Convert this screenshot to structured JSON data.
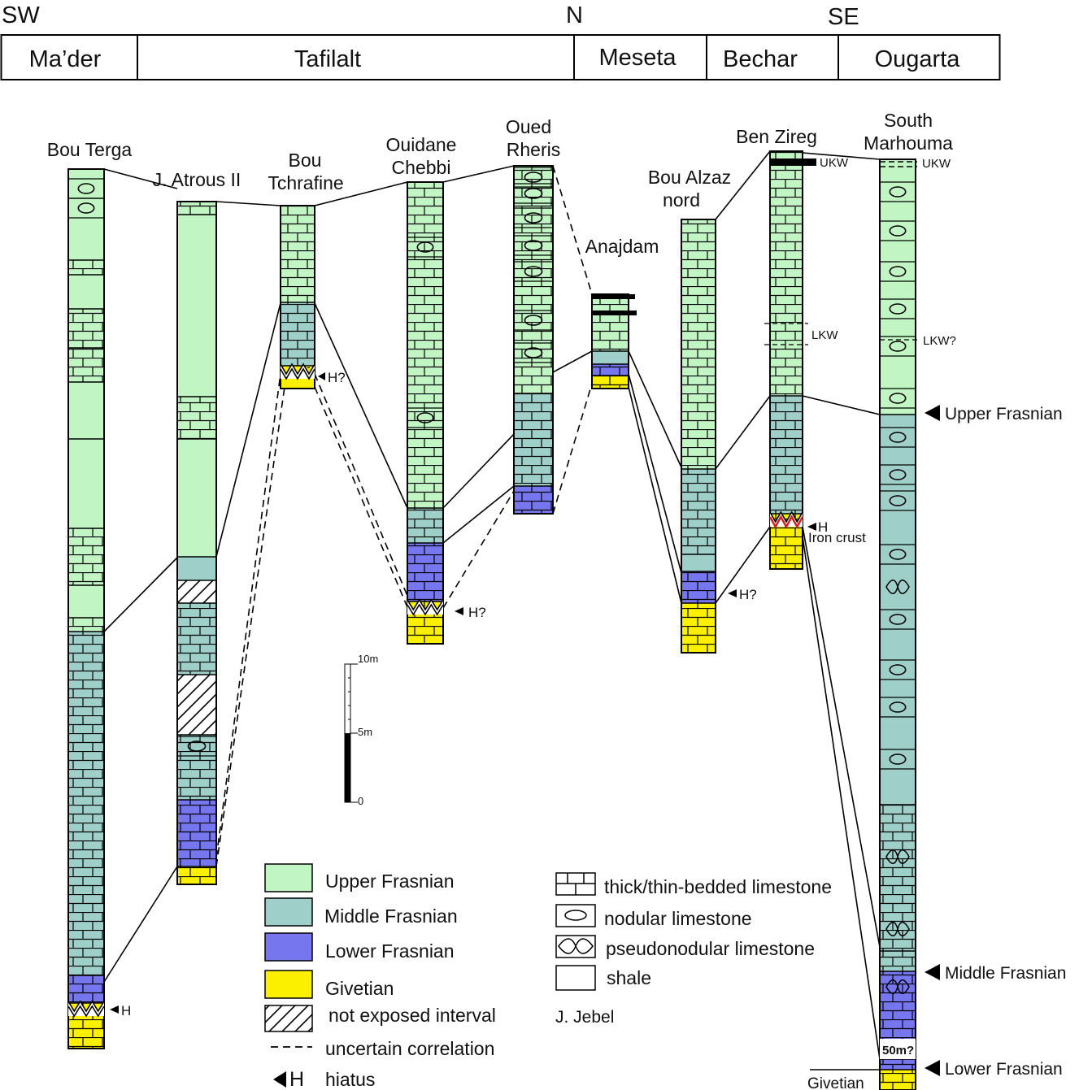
{
  "directions": {
    "sw": "SW",
    "n": "N",
    "se": "SE"
  },
  "regions": [
    "Ma’der",
    "Tafilalt",
    "Meseta",
    "Bechar",
    "Ougarta"
  ],
  "sections": {
    "bou_terga": "Bou Terga",
    "j_atrous": "J. Atrous II",
    "bou_tchrafine": [
      "Bou",
      "Tchrafine"
    ],
    "ouidane_chebbi": [
      "Ouidane",
      "Chebbi"
    ],
    "oued_rheris": [
      "Oued",
      "Rheris"
    ],
    "anajdam": "Anajdam",
    "bou_alzaz": [
      "Bou Alzaz",
      "nord"
    ],
    "ben_zireg": "Ben Zireg",
    "south_marhouma": [
      "South",
      "Marhouma"
    ]
  },
  "annotations": {
    "ukw": "UKW",
    "lkw": "LKW",
    "lkw_q": "LKW?",
    "h": "H",
    "h_q": "H?",
    "iron_crust": "Iron crust",
    "upper_frasnian": "Upper Frasnian",
    "middle_frasnian": "Middle Frasnian",
    "lower_frasnian": "Lower Frasnian",
    "givetian": "Givetian",
    "fifty_m": "50m?"
  },
  "scale": {
    "top": "10m",
    "mid": "5m",
    "zero": "0"
  },
  "legend": {
    "stages": [
      {
        "label": "Upper Frasnian",
        "color": "#c2f5c4"
      },
      {
        "label": "Middle Frasnian",
        "color": "#9fcfc9"
      },
      {
        "label": "Lower Frasnian",
        "color": "#7676ee"
      },
      {
        "label": "Givetian",
        "color": "#fbf000"
      }
    ],
    "not_exposed": "not exposed interval",
    "uncertain": "uncertain correlation",
    "hiatus_symbol": "H",
    "hiatus": "hiatus",
    "lithology": [
      "thick/thin-bedded limestone",
      "nodular limestone",
      "pseudonodular limestone",
      "shale"
    ],
    "jebel": "J. Jebel"
  },
  "colors": {
    "upper_frasnian": "#c2f5c4",
    "middle_frasnian": "#9fcfc9",
    "lower_frasnian": "#7676ee",
    "givetian": "#fbf000",
    "iron_crust": "#d62020"
  },
  "icons": [
    "hiatus-arrow-icon",
    "nodular-icon",
    "pseudonodular-icon",
    "brick-icon"
  ]
}
